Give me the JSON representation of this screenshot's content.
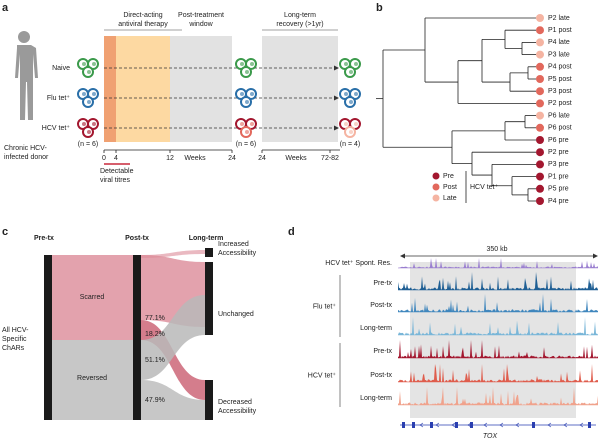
{
  "a": {
    "label": "a",
    "donor": [
      "Chronic HCV-",
      "infected donor"
    ],
    "rows": [
      "Naive",
      "Flu tet⁺",
      "HCV tet⁺"
    ],
    "phases": [
      [
        "Direct-acting",
        "antiviral therapy"
      ],
      [
        "Post-treatment",
        "window"
      ],
      [
        "Long-term",
        "recovery (>1yr)"
      ]
    ],
    "ticks1": [
      "0",
      "4",
      "12",
      "24"
    ],
    "ticks2": [
      "24",
      "72-82"
    ],
    "units": [
      "Weeks",
      "Weeks"
    ],
    "n": [
      "(n = 6)",
      "(n = 6)",
      "(n = 4)"
    ],
    "viral": [
      "Detectable",
      "viral titres"
    ]
  },
  "b": {
    "label": "b",
    "leaves": [
      {
        "name": "P2 late",
        "stage": 2
      },
      {
        "name": "P1 post",
        "stage": 1
      },
      {
        "name": "P4 late",
        "stage": 2
      },
      {
        "name": "P3 late",
        "stage": 2
      },
      {
        "name": "P4 post",
        "stage": 1
      },
      {
        "name": "P5 post",
        "stage": 1
      },
      {
        "name": "P3 post",
        "stage": 1
      },
      {
        "name": "P2 post",
        "stage": 1
      },
      {
        "name": "P6 late",
        "stage": 2
      },
      {
        "name": "P6 post",
        "stage": 1
      },
      {
        "name": "P6 pre",
        "stage": 0
      },
      {
        "name": "P2 pre",
        "stage": 0
      },
      {
        "name": "P3 pre",
        "stage": 0
      },
      {
        "name": "P1 pre",
        "stage": 0
      },
      {
        "name": "P5 pre",
        "stage": 0
      },
      {
        "name": "P4 pre",
        "stage": 0
      }
    ],
    "legend": {
      "title": "HCV tet⁺",
      "items": [
        {
          "label": "Pre",
          "color": "#a3172f"
        },
        {
          "label": "Post",
          "color": "#e2685c"
        },
        {
          "label": "Late",
          "color": "#f5b4a2"
        }
      ]
    }
  },
  "c": {
    "label": "c",
    "columns": [
      "Pre-tx",
      "Post-tx",
      "Long-term"
    ],
    "source": [
      "All HCV-",
      "Specific",
      "ChARs"
    ],
    "groups": [
      "Scarred",
      "Reversed"
    ],
    "percents": [
      "77.1%",
      "18.2%",
      "51.1%",
      "47.9%"
    ],
    "outcomes": [
      [
        "Increased",
        "Accessibility"
      ],
      [
        "Unchanged"
      ],
      [
        "Decreased",
        "Accessibility"
      ]
    ]
  },
  "d": {
    "label": "d",
    "scale": "350 kb",
    "spont": "HCV tet⁺ Spont. Res.",
    "groups": [
      {
        "name": "Flu tet⁺",
        "tracks": [
          "Pre-tx",
          "Post-tx",
          "Long-term"
        ]
      },
      {
        "name": "HCV tet⁺",
        "tracks": [
          "Pre-tx",
          "Post-tx",
          "Long-term"
        ]
      }
    ],
    "gene": "TOX"
  }
}
